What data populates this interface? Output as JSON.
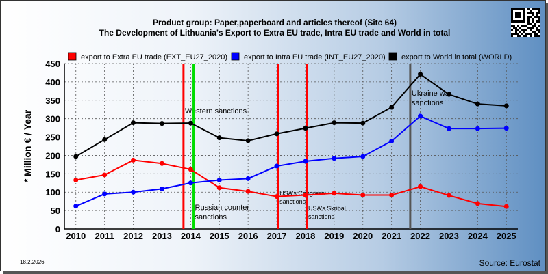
{
  "chart_data": {
    "type": "line",
    "title": "Product group: Paper,paperboard and articles thereof (Sitc 64)",
    "subtitle": "The Development of Lithuania's Export to Extra EU trade, Intra EU trade and World in total",
    "ylabel": "* Million € / Year",
    "xlabel": "",
    "ylim": [
      0,
      450
    ],
    "yticks": [
      0,
      50,
      100,
      150,
      200,
      250,
      300,
      350,
      400,
      450
    ],
    "grid": true,
    "legend_position": "top",
    "x": [
      2010,
      2011,
      2012,
      2013,
      2014,
      2015,
      2016,
      2017,
      2018,
      2019,
      2020,
      2021,
      2022,
      2023,
      2024,
      2025
    ],
    "series": [
      {
        "name": "export to Extra EU trade (EXT_EU27_2020)",
        "color": "#ff0000",
        "values": [
          133,
          147,
          187,
          178,
          162,
          112,
          102,
          88,
          92,
          97,
          92,
          92,
          115,
          91,
          69,
          61
        ]
      },
      {
        "name": "export to Intra EU trade (INT_EU27_2020)",
        "color": "#0000ff",
        "values": [
          62,
          95,
          100,
          109,
          125,
          133,
          137,
          171,
          184,
          192,
          197,
          239,
          307,
          273,
          273,
          274
        ]
      },
      {
        "name": "export to World in total (WORLD)",
        "color": "#000000",
        "values": [
          197,
          243,
          289,
          287,
          288,
          248,
          240,
          259,
          274,
          289,
          288,
          331,
          421,
          366,
          340,
          335
        ]
      }
    ],
    "vertical_markers": [
      {
        "x": 2013.75,
        "color": "#ff0000",
        "label": "Western sanctions",
        "label_size": "normal",
        "label_anchor": "top"
      },
      {
        "x": 2014.1,
        "color": "#00dd00",
        "label_lines": [
          "Russian counter",
          "sanctions"
        ],
        "label_size": "normal",
        "label_anchor": "bottom"
      },
      {
        "x": 2017.05,
        "color": "#ff0000",
        "label_lines": [
          "USA's Congress",
          "sanctions"
        ],
        "label_size": "small",
        "label_anchor": "lower"
      },
      {
        "x": 2018.05,
        "color": "#ff0000",
        "label_lines": [
          "USA's Skribal",
          "sanctions"
        ],
        "label_size": "small",
        "label_anchor": "lowest"
      },
      {
        "x": 2021.65,
        "color": "#555555",
        "label_lines": [
          "Ukraine war",
          "sanctions"
        ],
        "label_size": "normal",
        "label_anchor": "upper"
      }
    ],
    "date": "18.2.2026",
    "source": "Source: Eurostat"
  }
}
